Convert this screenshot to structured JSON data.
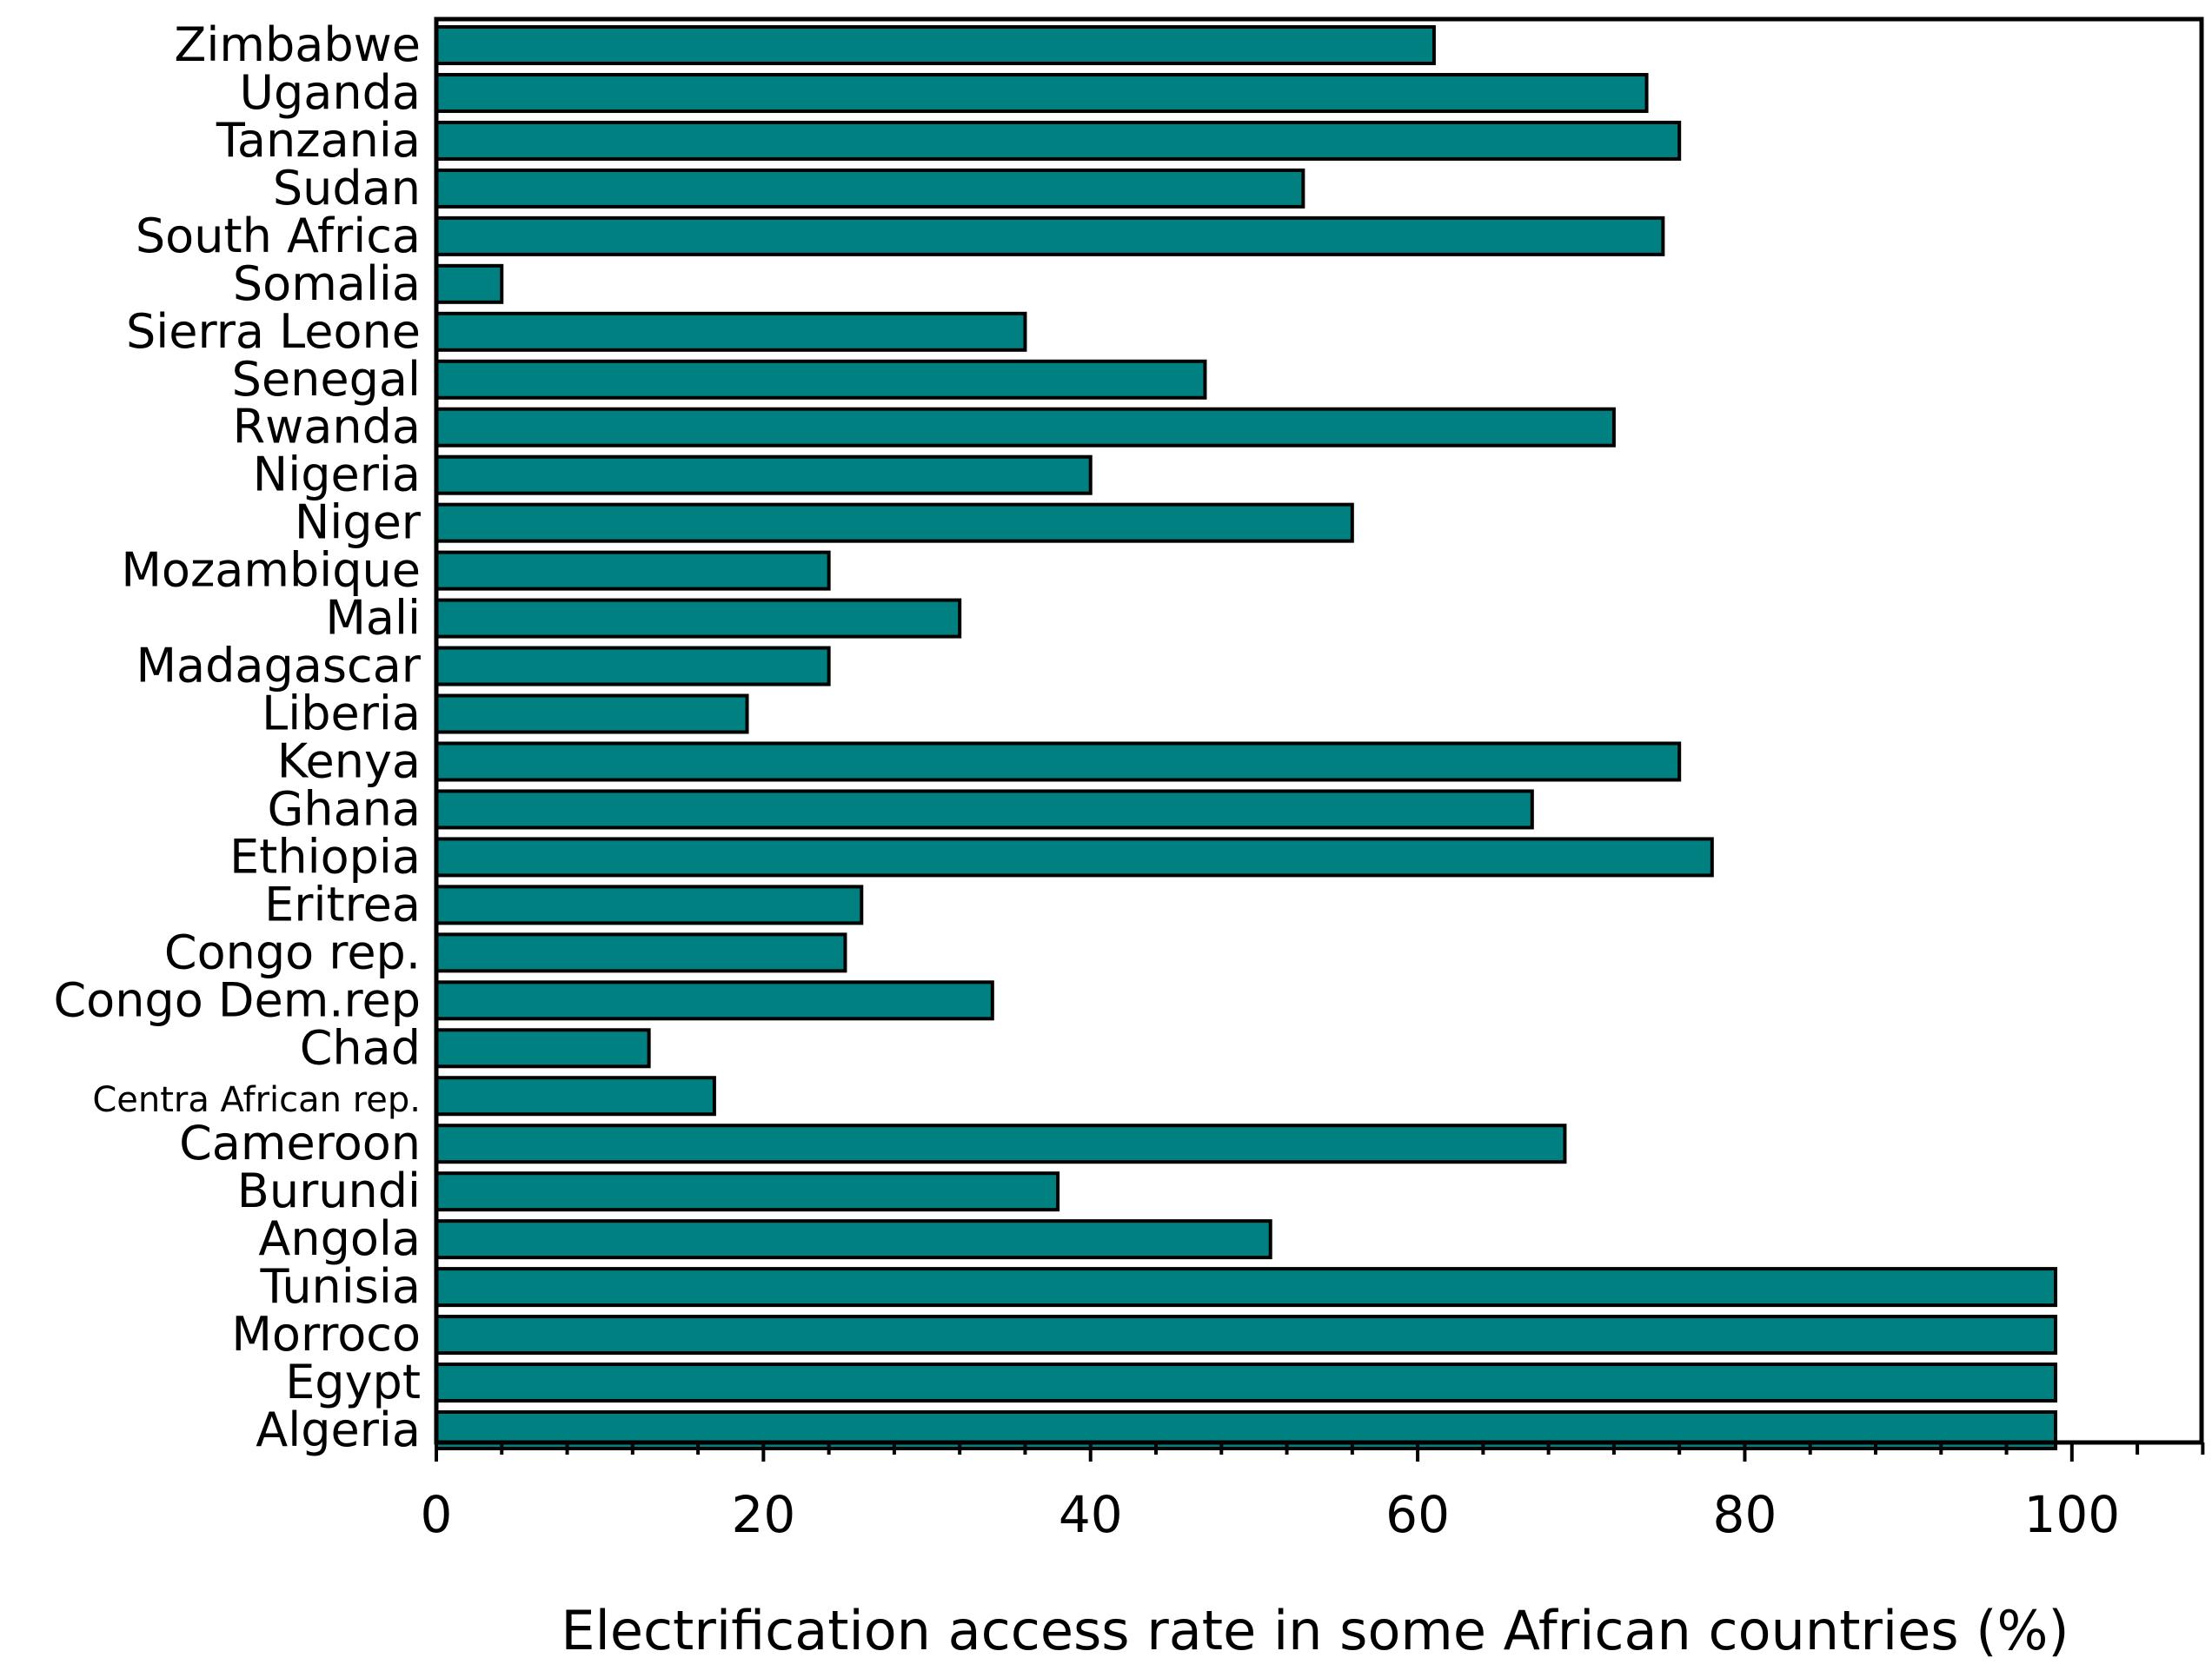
{
  "chart_data": {
    "type": "bar",
    "orientation": "horizontal",
    "categories": [
      "Zimbabwe",
      "Uganda",
      "Tanzania",
      "Sudan",
      "South Africa",
      "Somalia",
      "Sierra Leone",
      "Senegal",
      "Rwanda",
      "Nigeria",
      "Niger",
      "Mozambique",
      "Mali",
      "Madagascar",
      "Liberia",
      "Kenya",
      "Ghana",
      "Ethiopia",
      "Eritrea",
      "Congo rep.",
      "Congo Dem.rep",
      "Chad",
      "Centra African rep.",
      "Cameroon",
      "Burundi",
      "Angola",
      "Tunisia",
      "Morroco",
      "Egypt",
      "Algeria"
    ],
    "values": [
      61,
      74,
      76,
      53,
      75,
      4,
      36,
      47,
      72,
      40,
      56,
      24,
      32,
      24,
      19,
      76,
      67,
      78,
      26,
      25,
      34,
      13,
      17,
      69,
      38,
      51,
      99,
      99,
      99,
      99
    ],
    "xlabel": "Electrification access rate in some African countries (%)",
    "ylabel": "",
    "xlim": [
      0,
      108
    ],
    "xticks": [
      0,
      20,
      40,
      60,
      80,
      100
    ],
    "minor_tick_step": 4,
    "grid": false,
    "colors": {
      "bar_fill": "#008080",
      "bar_stroke": "#000000",
      "axis": "#000000"
    }
  }
}
